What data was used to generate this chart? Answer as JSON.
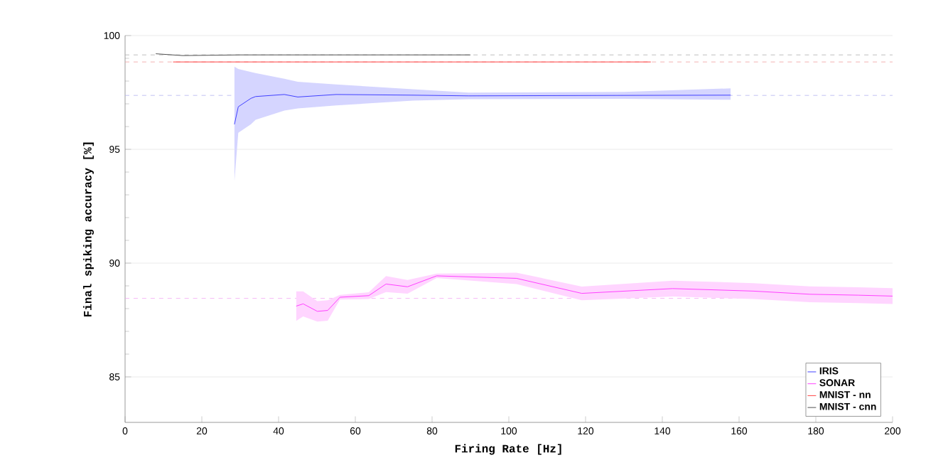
{
  "chart_data": {
    "type": "line",
    "xlabel": "Firing Rate [Hz]",
    "ylabel": "Final spiking accuracy [%]",
    "xlim": [
      0,
      200
    ],
    "ylim": [
      83,
      100
    ],
    "xticks": [
      0,
      20,
      40,
      60,
      80,
      100,
      120,
      140,
      160,
      180,
      200
    ],
    "yticks": [
      85,
      90,
      95,
      100
    ],
    "grid": "y",
    "legend": "bottom right",
    "line_style": "solid",
    "marker": "none",
    "series": [
      {
        "name": "IRIS",
        "color": "#4040ff",
        "x": [
          28.5,
          29.5,
          32.8,
          34,
          41.5,
          45,
          55,
          75,
          89.6,
          130,
          157.8
        ],
        "values": [
          96.1,
          96.87,
          97.24,
          97.32,
          97.41,
          97.3,
          97.41,
          97.38,
          97.35,
          97.37,
          97.38
        ],
        "lower": [
          93.6,
          95.73,
          96.1,
          96.3,
          96.7,
          96.8,
          96.93,
          97.14,
          97.2,
          97.22,
          97.18
        ],
        "upper": [
          98.63,
          98.53,
          98.4,
          98.35,
          98.1,
          97.97,
          97.85,
          97.64,
          97.49,
          97.52,
          97.68
        ]
      },
      {
        "name": "SONAR",
        "color": "#ff40ff",
        "x": [
          44.6,
          46.4,
          50.1,
          52.8,
          56,
          63.5,
          68,
          73.6,
          81.2,
          102,
          119,
          142.7,
          163.7,
          178.5,
          191,
          200
        ],
        "values": [
          88.11,
          88.21,
          87.88,
          87.92,
          88.5,
          88.57,
          89.08,
          88.96,
          89.44,
          89.33,
          88.67,
          88.88,
          88.77,
          88.63,
          88.59,
          88.55
        ],
        "lower": [
          87.46,
          87.66,
          87.43,
          87.47,
          88.4,
          88.42,
          88.73,
          88.66,
          89.34,
          89.08,
          88.37,
          88.53,
          88.42,
          88.28,
          88.24,
          88.2
        ],
        "upper": [
          88.76,
          88.76,
          88.33,
          88.37,
          88.6,
          88.72,
          89.43,
          89.26,
          89.54,
          89.58,
          88.97,
          89.23,
          89.12,
          88.98,
          88.94,
          88.9
        ]
      },
      {
        "name": "MNIST - nn",
        "color": "#ff4040",
        "x": [
          12.5,
          137
        ],
        "values": [
          98.84,
          98.84
        ]
      },
      {
        "name": "MNIST - cnn",
        "color": "#505050",
        "x": [
          8,
          15,
          30,
          90
        ],
        "values": [
          99.2,
          99.12,
          99.15,
          99.15
        ]
      }
    ],
    "ref_lines": [
      {
        "axis": "y",
        "value": 99.15,
        "color": "#b0b0b0",
        "line_style": "dashed"
      },
      {
        "axis": "y",
        "value": 98.84,
        "color": "#f0a0a0",
        "line_style": "dashed"
      },
      {
        "axis": "y",
        "value": 97.37,
        "color": "#b0b0f0",
        "line_style": "dashed"
      },
      {
        "axis": "y",
        "value": 88.45,
        "color": "#f0a0f0",
        "line_style": "dashed"
      }
    ]
  }
}
